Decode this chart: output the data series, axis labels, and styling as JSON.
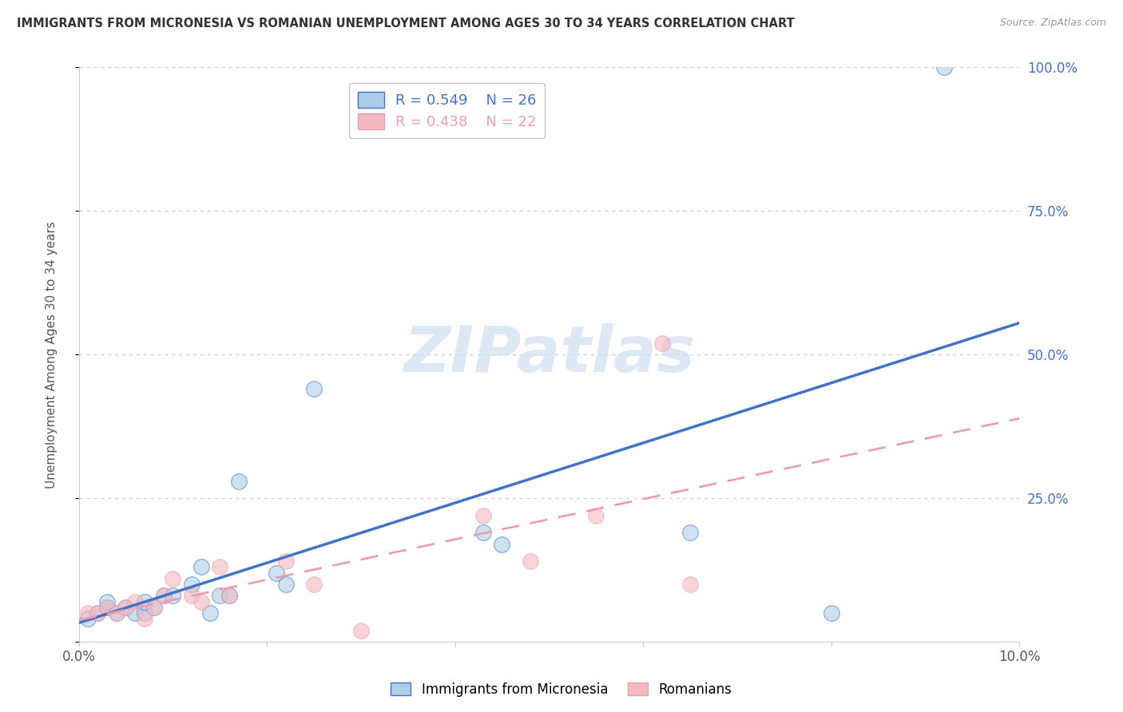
{
  "title": "IMMIGRANTS FROM MICRONESIA VS ROMANIAN UNEMPLOYMENT AMONG AGES 30 TO 34 YEARS CORRELATION CHART",
  "source": "Source: ZipAtlas.com",
  "ylabel": "Unemployment Among Ages 30 to 34 years",
  "xlim": [
    0,
    0.1
  ],
  "ylim": [
    0,
    1.0
  ],
  "xticks": [
    0.0,
    0.02,
    0.04,
    0.06,
    0.08,
    0.1
  ],
  "xtick_labels": [
    "0.0%",
    "",
    "",
    "",
    "",
    "10.0%"
  ],
  "yticks": [
    0.0,
    0.25,
    0.5,
    0.75,
    1.0
  ],
  "right_ytick_labels": [
    "",
    "25.0%",
    "50.0%",
    "75.0%",
    "100.0%"
  ],
  "blue_r": 0.549,
  "blue_n": 26,
  "pink_r": 0.438,
  "pink_n": 22,
  "blue_color": "#aecde8",
  "pink_color": "#f4b8c1",
  "blue_line_color": "#4472c4",
  "pink_line_color": "#e8a0aa",
  "right_label_color": "#4472c4",
  "watermark_color": "#d0dff0",
  "blue_points_x": [
    0.001,
    0.002,
    0.003,
    0.003,
    0.004,
    0.005,
    0.006,
    0.007,
    0.007,
    0.008,
    0.009,
    0.01,
    0.012,
    0.013,
    0.014,
    0.015,
    0.016,
    0.017,
    0.021,
    0.022,
    0.025,
    0.043,
    0.045,
    0.065,
    0.08,
    0.092
  ],
  "blue_points_y": [
    0.04,
    0.05,
    0.06,
    0.07,
    0.05,
    0.06,
    0.05,
    0.05,
    0.07,
    0.06,
    0.08,
    0.08,
    0.1,
    0.13,
    0.05,
    0.08,
    0.08,
    0.28,
    0.12,
    0.1,
    0.44,
    0.19,
    0.17,
    0.19,
    0.05,
    1.0
  ],
  "pink_points_x": [
    0.001,
    0.002,
    0.003,
    0.004,
    0.005,
    0.006,
    0.007,
    0.008,
    0.009,
    0.01,
    0.012,
    0.013,
    0.015,
    0.016,
    0.022,
    0.025,
    0.03,
    0.043,
    0.048,
    0.055,
    0.062,
    0.065
  ],
  "pink_points_y": [
    0.05,
    0.05,
    0.06,
    0.05,
    0.06,
    0.07,
    0.04,
    0.06,
    0.08,
    0.11,
    0.08,
    0.07,
    0.13,
    0.08,
    0.14,
    0.1,
    0.02,
    0.22,
    0.14,
    0.22,
    0.52,
    0.1
  ]
}
